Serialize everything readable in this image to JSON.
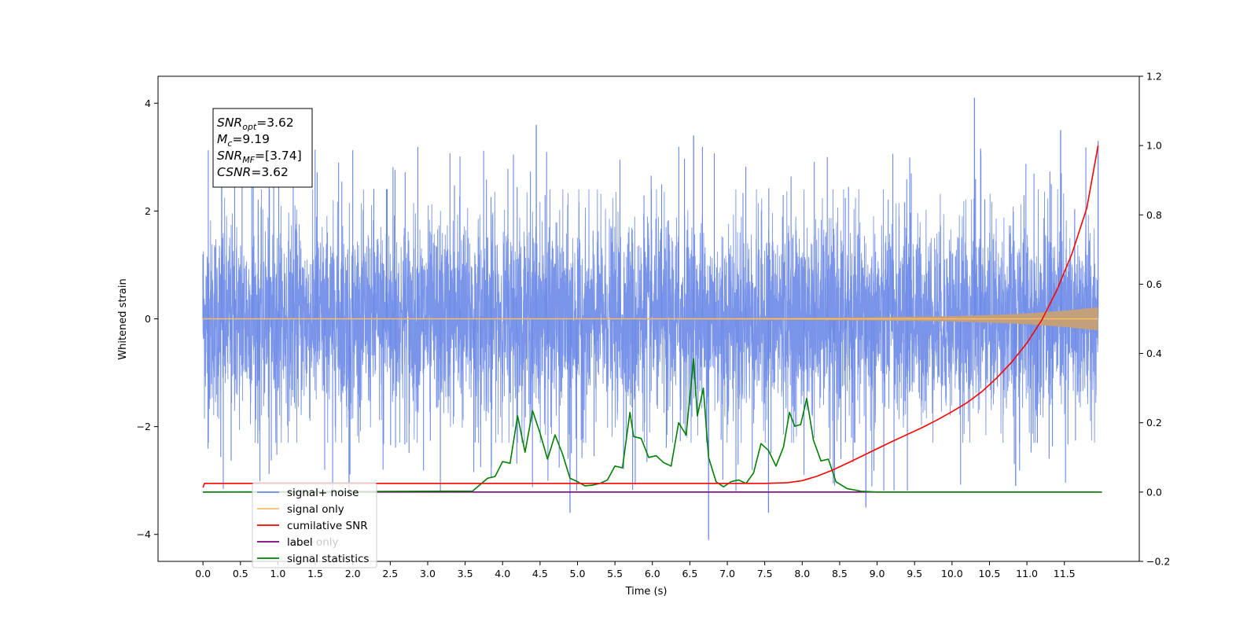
{
  "chart_data": {
    "type": "line",
    "xlabel": "Time (s)",
    "ylabel": "Whitened strain",
    "xlim": [
      -0.6,
      12.5
    ],
    "ylim": [
      -4.5,
      4.5
    ],
    "y2lim": [
      -0.2,
      1.2
    ],
    "x_ticks": [
      0.0,
      0.5,
      1.0,
      1.5,
      2.0,
      2.5,
      3.0,
      3.5,
      4.0,
      4.5,
      5.0,
      5.5,
      6.0,
      6.5,
      7.0,
      7.5,
      8.0,
      8.5,
      9.0,
      9.5,
      10.0,
      10.5,
      11.0,
      11.5
    ],
    "x_tick_labels": [
      "0.0",
      "0.5",
      "1.0",
      "1.5",
      "2.0",
      "2.5",
      "3.0",
      "3.5",
      "4.0",
      "4.5",
      "5.0",
      "5.5",
      "6.0",
      "6.5",
      "7.0",
      "7.5",
      "8.0",
      "8.5",
      "9.0",
      "9.5",
      "10.0",
      "10.5",
      "11.0",
      "11.5"
    ],
    "y_ticks": [
      -4,
      -2,
      0,
      2,
      4
    ],
    "y_tick_labels": [
      "−4",
      "−2",
      "0",
      "2",
      "4"
    ],
    "y2_ticks": [
      -0.2,
      0.0,
      0.2,
      0.4,
      0.6,
      0.8,
      1.0,
      1.2
    ],
    "y2_tick_labels": [
      "−0.2",
      "0.0",
      "0.2",
      "0.4",
      "0.6",
      "0.8",
      "1.0",
      "1.2"
    ],
    "grid": false,
    "legend_placement": "lower-left",
    "series": [
      {
        "name": "signal+ noise",
        "color": "#6a88e6",
        "axis": "left",
        "style": "dense noise band, approx ±2.2 typical amplitude from 0 to 12 s",
        "x": [
          0.0,
          0.25,
          1.95,
          4.45,
          4.9,
          6.55,
          6.75,
          7.55,
          8.85,
          10.3,
          10.85,
          11.45,
          11.95
        ],
        "values": [
          1.2,
          3.1,
          -3.3,
          3.6,
          -3.6,
          3.4,
          -4.1,
          -3.6,
          -3.5,
          4.1,
          -3.1,
          3.5,
          3.3
        ]
      },
      {
        "name": "signal only",
        "color": "#ffbf66",
        "axis": "left",
        "style": "chirp growing in amplitude toward 12 s",
        "x": [
          0.0,
          2.0,
          4.0,
          6.0,
          8.0,
          9.0,
          10.0,
          10.5,
          11.0,
          11.5,
          12.0
        ],
        "values": [
          0.01,
          0.01,
          0.01,
          0.01,
          0.02,
          0.03,
          0.05,
          0.07,
          0.1,
          0.15,
          0.22
        ]
      },
      {
        "name": "cumilative SNR",
        "color": "#ff0000",
        "axis": "right",
        "x": [
          0.0,
          0.02,
          7.5,
          7.8,
          8.0,
          8.2,
          8.4,
          8.6,
          8.8,
          9.0,
          9.2,
          9.4,
          9.6,
          9.8,
          10.0,
          10.2,
          10.4,
          10.6,
          10.8,
          11.0,
          11.2,
          11.4,
          11.6,
          11.8,
          11.95
        ],
        "values": [
          0.013,
          0.025,
          0.025,
          0.027,
          0.033,
          0.046,
          0.063,
          0.083,
          0.104,
          0.125,
          0.146,
          0.166,
          0.186,
          0.208,
          0.232,
          0.258,
          0.29,
          0.33,
          0.376,
          0.43,
          0.497,
          0.583,
          0.687,
          0.82,
          1.0
        ]
      },
      {
        "name": "label",
        "color": "#800080",
        "axis": "right",
        "x": [
          0.0,
          12.0
        ],
        "values": [
          0.0,
          0.0
        ]
      },
      {
        "name": "signal statistics",
        "color": "#008000",
        "axis": "right",
        "x": [
          0.0,
          3.6,
          3.8,
          3.9,
          4.0,
          4.1,
          4.2,
          4.3,
          4.4,
          4.5,
          4.6,
          4.7,
          4.8,
          4.9,
          5.0,
          5.1,
          5.2,
          5.3,
          5.4,
          5.5,
          5.6,
          5.7,
          5.75,
          5.85,
          5.95,
          6.05,
          6.15,
          6.25,
          6.35,
          6.45,
          6.55,
          6.6,
          6.68,
          6.75,
          6.85,
          6.95,
          7.05,
          7.15,
          7.25,
          7.35,
          7.45,
          7.55,
          7.65,
          7.75,
          7.83,
          7.9,
          7.98,
          8.06,
          8.15,
          8.25,
          8.35,
          8.45,
          8.6,
          8.8,
          9.0,
          12.0
        ],
        "values": [
          0.0,
          0.003,
          0.04,
          0.045,
          0.088,
          0.083,
          0.22,
          0.115,
          0.235,
          0.17,
          0.095,
          0.165,
          0.11,
          0.04,
          0.03,
          0.018,
          0.02,
          0.025,
          0.035,
          0.075,
          0.07,
          0.23,
          0.16,
          0.155,
          0.1,
          0.105,
          0.085,
          0.075,
          0.2,
          0.165,
          0.385,
          0.22,
          0.3,
          0.1,
          0.03,
          0.015,
          0.03,
          0.035,
          0.025,
          0.055,
          0.14,
          0.12,
          0.075,
          0.13,
          0.23,
          0.19,
          0.195,
          0.27,
          0.15,
          0.09,
          0.095,
          0.03,
          0.01,
          0.002,
          0.0,
          0.0
        ]
      },
      {
        "name": "label only",
        "color": "#800080",
        "axis": "right",
        "x": [],
        "values": []
      }
    ],
    "legend_entries": [
      {
        "label": "signal+ noise",
        "color": "#6a88e6"
      },
      {
        "label": "signal only",
        "color": "#ffbf66"
      },
      {
        "label": "cumilative SNR",
        "color": "#ff0000"
      },
      {
        "label": "label",
        "color": "#800080"
      },
      {
        "label": "signal statistics",
        "color": "#008000"
      }
    ],
    "annotation": {
      "lines": [
        {
          "base": "SNR",
          "sub": "opt",
          "value": "=3.62"
        },
        {
          "base": "M",
          "sub": "c",
          "value": "=9.19"
        },
        {
          "base": "SNR",
          "sub": "MF",
          "value": "=[3.74]"
        },
        {
          "base": "CSNR",
          "sub": "",
          "value": "=3.62"
        }
      ]
    },
    "overlapped_text": "label only"
  }
}
